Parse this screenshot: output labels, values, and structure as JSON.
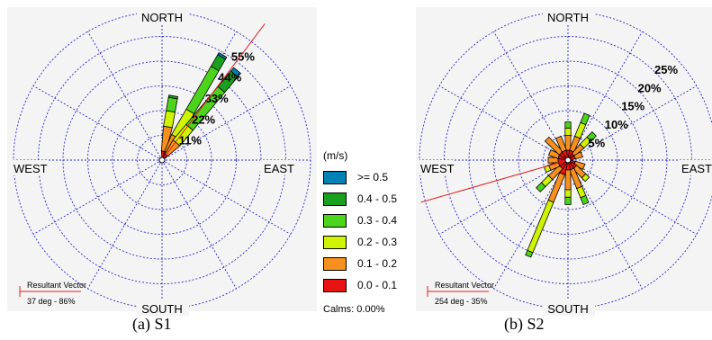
{
  "chart_data": [
    {
      "type": "wind-rose",
      "title": "S1",
      "directions": [
        "NORTH",
        "EAST",
        "SOUTH",
        "WEST"
      ],
      "ring_labels": [
        "11%",
        "22%",
        "33%",
        "44%",
        "55%"
      ],
      "rings": [
        11,
        22,
        33,
        44,
        55
      ],
      "rmax": 66,
      "petals": [
        {
          "dir": 10,
          "segs": [
            4,
            11,
            7,
            6,
            1
          ]
        },
        {
          "dir": 30,
          "segs": [
            4,
            8,
            13,
            22,
            6,
            1
          ]
        },
        {
          "dir": 40,
          "segs": [
            3,
            7,
            9,
            22,
            9,
            2
          ]
        }
      ],
      "resultant": {
        "text": "37 deg - 86%",
        "angle": 37
      },
      "resultant_label": "Resultant Vector"
    },
    {
      "type": "wind-rose",
      "title": "S2",
      "directions": [
        "NORTH",
        "EAST",
        "SOUTH",
        "WEST"
      ],
      "ring_labels": [
        "5%",
        "10%",
        "15%",
        "20%",
        "25%"
      ],
      "rings": [
        5,
        10,
        15,
        20,
        25
      ],
      "rmax": 30,
      "petals": [
        {
          "dir": 0,
          "segs": [
            2,
            3,
            1.5,
            1.2
          ]
        },
        {
          "dir": 22.5,
          "segs": [
            2,
            3,
            3,
            2
          ]
        },
        {
          "dir": 45,
          "segs": [
            1.5,
            2.5,
            2,
            1.5
          ]
        },
        {
          "dir": 67.5,
          "segs": [
            1.5,
            1.5
          ]
        },
        {
          "dir": 112.5,
          "segs": [
            1.5,
            2
          ]
        },
        {
          "dir": 135,
          "segs": [
            2,
            2.5,
            1
          ]
        },
        {
          "dir": 157.5,
          "segs": [
            2,
            4,
            2,
            1.5
          ]
        },
        {
          "dir": 180,
          "segs": [
            2,
            4,
            1.5,
            1.5
          ]
        },
        {
          "dir": 202.5,
          "segs": [
            3,
            6,
            11,
            1
          ]
        },
        {
          "dir": 225,
          "segs": [
            2,
            3,
            2,
            1.5
          ]
        },
        {
          "dir": 247.5,
          "segs": [
            2,
            2,
            1
          ]
        },
        {
          "dir": 270,
          "segs": [
            2,
            2
          ]
        },
        {
          "dir": 292.5,
          "segs": [
            2,
            2
          ]
        },
        {
          "dir": 315,
          "segs": [
            2,
            4
          ]
        },
        {
          "dir": 337.5,
          "segs": [
            2,
            3
          ]
        }
      ],
      "resultant": {
        "text": "254 deg - 35%",
        "angle": 254
      },
      "resultant_label": "Resultant Vector"
    }
  ],
  "legend": {
    "title": "(m/s)",
    "items": [
      {
        "label": ">= 0.5",
        "color": "#0082b4"
      },
      {
        "label": "0.4 - 0.5",
        "color": "#19a01e"
      },
      {
        "label": "0.3 - 0.4",
        "color": "#4cd41c"
      },
      {
        "label": "0.2 - 0.3",
        "color": "#d0f400"
      },
      {
        "label": "0.1 - 0.2",
        "color": "#f7901e"
      },
      {
        "label": "0.0 - 0.1",
        "color": "#e81414"
      }
    ],
    "calms": "Calms: 0.00%"
  },
  "segment_colors": [
    "#e81414",
    "#f7901e",
    "#d0f400",
    "#4cd41c",
    "#19a01e",
    "#0082b4"
  ],
  "captions": [
    "(a) S1",
    "(b) S2"
  ]
}
